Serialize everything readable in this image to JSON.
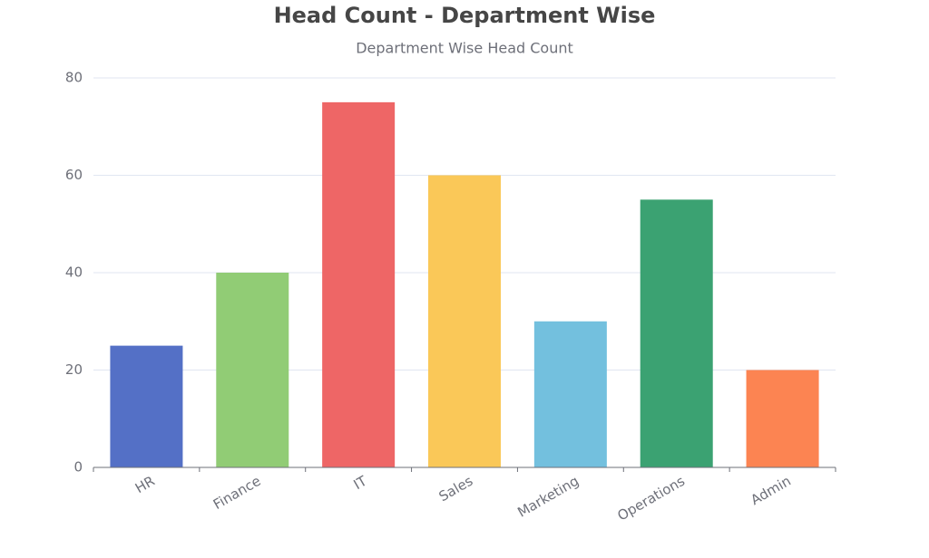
{
  "chart_data": {
    "type": "bar",
    "title": "Head Count - Department Wise",
    "subtitle": "Department Wise Head Count",
    "categories": [
      "HR",
      "Finance",
      "IT",
      "Sales",
      "Marketing",
      "Operations",
      "Admin"
    ],
    "values": [
      25,
      40,
      75,
      60,
      30,
      55,
      20
    ],
    "colors": [
      "#5470c6",
      "#91cc75",
      "#ee6666",
      "#fac858",
      "#73c0de",
      "#3ba272",
      "#fc8452"
    ],
    "ylim": [
      0,
      80
    ],
    "yticks": [
      0,
      20,
      40,
      60,
      80
    ],
    "grid": true
  }
}
